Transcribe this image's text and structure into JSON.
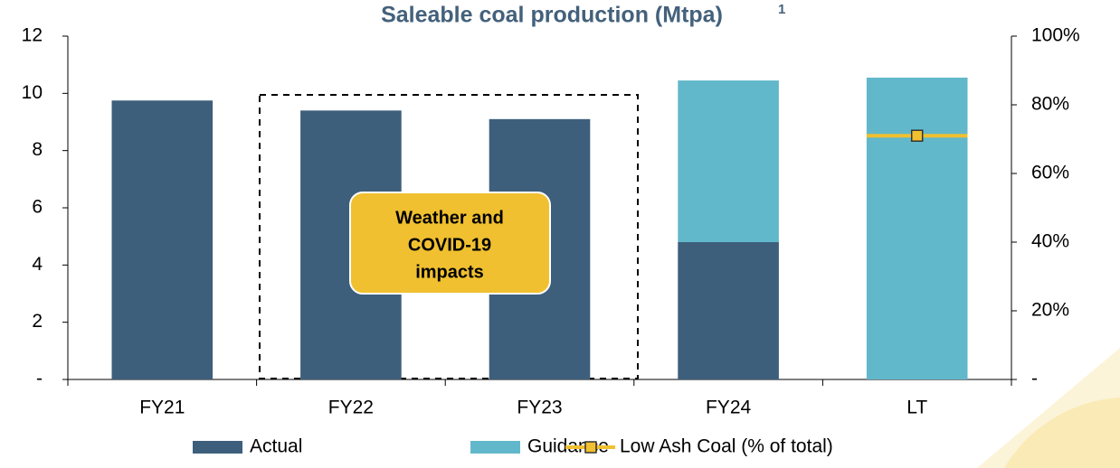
{
  "chart_data": {
    "type": "bar",
    "title": "Saleable coal production (Mtpa)",
    "title_superscript": "1",
    "categories": [
      "FY21",
      "FY22",
      "FY23",
      "FY24",
      "LT"
    ],
    "stacked": true,
    "series": [
      {
        "name": "Actual",
        "color": "#3d5f7c",
        "values": [
          9.75,
          9.4,
          9.1,
          4.8,
          null
        ]
      },
      {
        "name": "Guidance",
        "color": "#62b8cb",
        "values": [
          null,
          null,
          null,
          5.65,
          10.55
        ]
      },
      {
        "name": "Low Ash Coal (% of total)",
        "type": "line",
        "axis": "y2",
        "color": "#f0c030",
        "values": [
          null,
          null,
          null,
          null,
          71
        ]
      }
    ],
    "ylim": [
      0,
      12
    ],
    "yticks": [
      {
        "value": 0,
        "label": "-"
      },
      2,
      4,
      6,
      8,
      10,
      12
    ],
    "y2lim": [
      0,
      100
    ],
    "y2ticks": [
      {
        "value": 0,
        "label": "-"
      },
      {
        "value": 20,
        "label": "20%"
      },
      {
        "value": 40,
        "label": "40%"
      },
      {
        "value": 60,
        "label": "60%"
      },
      {
        "value": 80,
        "label": "80%"
      },
      {
        "value": 100,
        "label": "100%"
      }
    ],
    "annotation": [
      "Weather and",
      "COVID-19",
      "impacts"
    ],
    "legend": "bottom"
  }
}
